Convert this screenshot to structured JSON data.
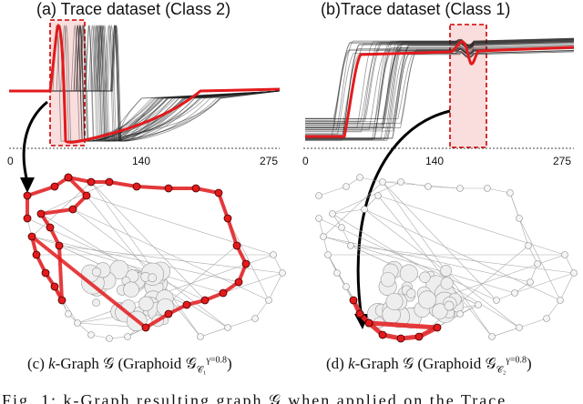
{
  "panels": {
    "a": {
      "title": "(a) Trace dataset (Class 2)",
      "ticks": [
        "0",
        "140",
        "275"
      ]
    },
    "b": {
      "title": "(b)Trace dataset (Class 1)",
      "ticks": [
        "0",
        "140",
        "275"
      ]
    }
  },
  "captions": {
    "c": {
      "prefix": "(c) ",
      "k": "k",
      "mid": "-Graph ",
      "g": "𝒢",
      "paren": " (Graphoid ",
      "sup": "γ=0.8",
      "sub": "𝒞₁",
      "end": ")"
    },
    "d": {
      "prefix": "(d) ",
      "k": "k",
      "mid": "-Graph ",
      "g": "𝒢",
      "paren": " (Graphoid ",
      "sup": "γ=0.8",
      "sub": "𝒞₂",
      "end": ")"
    }
  },
  "figure_caption": "Fig. 1: k-Graph resulting graph 𝒢 when applied on the Trace",
  "colors": {
    "highlight": "#e31a1c",
    "trace": "#222222",
    "graph": "#aaaaaa"
  }
}
